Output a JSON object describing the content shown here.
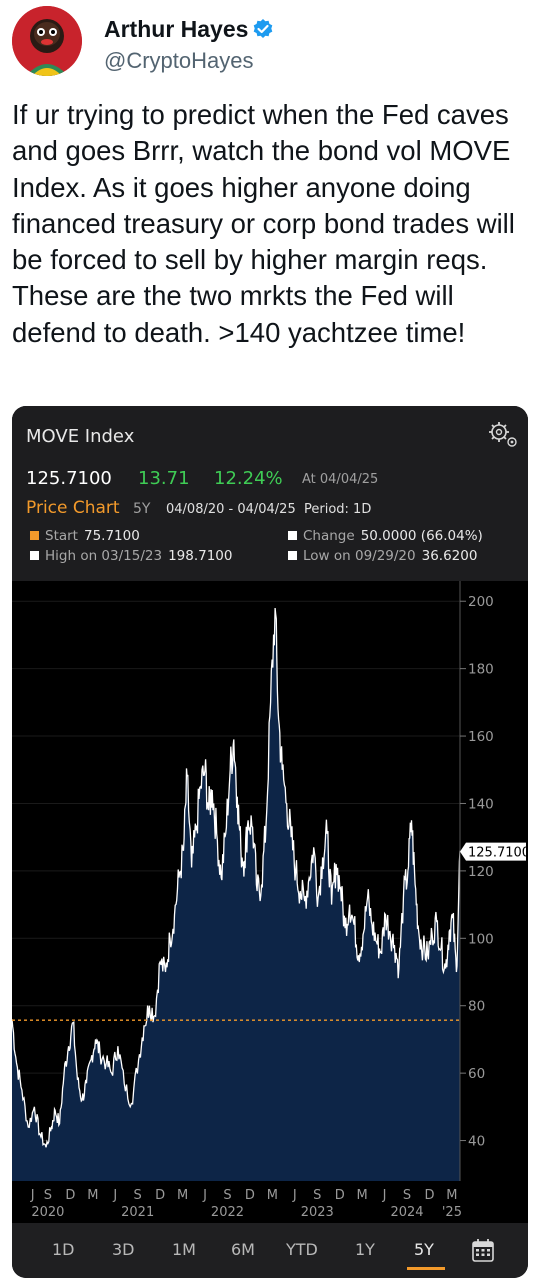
{
  "tweet": {
    "author_name": "Arthur Hayes",
    "author_handle": "@CryptoHayes",
    "text": "If ur trying to predict when the Fed caves and goes Brrr, watch the bond vol MOVE Index. As it goes higher anyone doing financed treasury or corp bond trades will be forced to sell by higher margin reqs. These are the two mrkts the Fed will defend to death. >140 yachtzee time!"
  },
  "widget": {
    "title": "MOVE Index",
    "last_price": "125.7100",
    "net_change": "13.71",
    "pct_change": "12.24%",
    "as_of": "At 04/04/25",
    "chart_label": "Price Chart",
    "range_label": "5Y",
    "date_range": "04/08/20 - 04/04/25",
    "period": "Period: 1D",
    "stats": {
      "start_label": "Start",
      "start_value": "75.7100",
      "change_label": "Change",
      "change_value": "50.0000 (66.04%)",
      "high_label": "High on 03/15/23",
      "high_value": "198.7100",
      "low_label": "Low on 09/29/20",
      "low_value": "36.6200"
    },
    "last_price_tag": "125.7100",
    "tabs": [
      "1D",
      "3D",
      "1M",
      "6M",
      "YTD",
      "1Y",
      "5Y"
    ],
    "active_tab": "5Y",
    "colors": {
      "accent": "#f39a2b",
      "positive": "#3fcc55",
      "area_fill": "#0d2547",
      "line": "#ffffff"
    }
  },
  "chart_data": {
    "type": "area",
    "title": "MOVE Index",
    "xlabel": "",
    "ylabel": "",
    "ylim": [
      28,
      206
    ],
    "xlim": [
      2020.27,
      2025.26
    ],
    "y_ticks": [
      40,
      60,
      80,
      100,
      120,
      140,
      160,
      180,
      200
    ],
    "x_month_ticks": [
      {
        "label": "J",
        "x": 2020.5
      },
      {
        "label": "S",
        "x": 2020.67
      },
      {
        "label": "D",
        "x": 2020.92
      },
      {
        "label": "M",
        "x": 2021.17
      },
      {
        "label": "J",
        "x": 2021.42
      },
      {
        "label": "S",
        "x": 2021.67
      },
      {
        "label": "D",
        "x": 2021.92
      },
      {
        "label": "M",
        "x": 2022.17
      },
      {
        "label": "J",
        "x": 2022.42
      },
      {
        "label": "S",
        "x": 2022.67
      },
      {
        "label": "D",
        "x": 2022.92
      },
      {
        "label": "M",
        "x": 2023.17
      },
      {
        "label": "J",
        "x": 2023.42
      },
      {
        "label": "S",
        "x": 2023.67
      },
      {
        "label": "D",
        "x": 2023.92
      },
      {
        "label": "M",
        "x": 2024.17
      },
      {
        "label": "J",
        "x": 2024.42
      },
      {
        "label": "S",
        "x": 2024.67
      },
      {
        "label": "D",
        "x": 2024.92
      },
      {
        "label": "M",
        "x": 2025.17
      }
    ],
    "x_year_ticks": [
      {
        "label": "2020",
        "x": 2020.67
      },
      {
        "label": "2021",
        "x": 2021.67
      },
      {
        "label": "2022",
        "x": 2022.67
      },
      {
        "label": "2023",
        "x": 2023.67
      },
      {
        "label": "2024",
        "x": 2024.67
      },
      {
        "label": "'25",
        "x": 2025.17
      }
    ],
    "reference_line": {
      "value": 75.71,
      "color": "#f39a2b",
      "style": "dashed"
    },
    "last_value": 125.71,
    "series": [
      {
        "x": [
          2020.27,
          2020.32,
          2020.38,
          2020.45,
          2020.52,
          2020.58,
          2020.65,
          2020.71,
          2020.75,
          2020.8,
          2020.85,
          2020.9,
          2020.95,
          2021.0,
          2021.05,
          2021.1,
          2021.15,
          2021.2,
          2021.25,
          2021.32,
          2021.38,
          2021.45,
          2021.52,
          2021.6,
          2021.68,
          2021.74,
          2021.8,
          2021.86,
          2021.92,
          2021.98,
          2022.03,
          2022.08,
          2022.13,
          2022.18,
          2022.22,
          2022.27,
          2022.32,
          2022.37,
          2022.42,
          2022.46,
          2022.5,
          2022.55,
          2022.6,
          2022.65,
          2022.7,
          2022.74,
          2022.78,
          2022.82,
          2022.86,
          2022.9,
          2022.95,
          2023.0,
          2023.05,
          2023.1,
          2023.15,
          2023.2,
          2023.24,
          2023.28,
          2023.33,
          2023.38,
          2023.43,
          2023.48,
          2023.53,
          2023.58,
          2023.63,
          2023.68,
          2023.73,
          2023.78,
          2023.83,
          2023.88,
          2023.93,
          2023.98,
          2024.03,
          2024.08,
          2024.13,
          2024.18,
          2024.23,
          2024.28,
          2024.33,
          2024.38,
          2024.43,
          2024.48,
          2024.53,
          2024.58,
          2024.63,
          2024.68,
          2024.72,
          2024.76,
          2024.8,
          2024.85,
          2024.9,
          2024.95,
          2025.0,
          2025.05,
          2025.1,
          2025.14,
          2025.18,
          2025.22,
          2025.26
        ],
        "y": [
          76,
          63,
          55,
          44,
          50,
          42,
          38,
          44,
          49,
          45,
          60,
          68,
          75,
          58,
          52,
          57,
          64,
          70,
          66,
          63,
          60,
          68,
          57,
          51,
          64,
          74,
          80,
          77,
          93,
          90,
          100,
          107,
          118,
          126,
          148,
          121,
          132,
          145,
          150,
          138,
          144,
          131,
          118,
          131,
          150,
          159,
          142,
          126,
          123,
          135,
          133,
          114,
          116,
          134,
          170,
          198,
          165,
          150,
          140,
          130,
          120,
          114,
          111,
          118,
          127,
          112,
          124,
          131,
          110,
          122,
          115,
          103,
          110,
          104,
          95,
          101,
          112,
          104,
          99,
          96,
          107,
          102,
          98,
          91,
          112,
          120,
          135,
          116,
          102,
          97,
          95,
          101,
          105,
          97,
          91,
          102,
          106,
          90,
          126
        ]
      }
    ]
  }
}
